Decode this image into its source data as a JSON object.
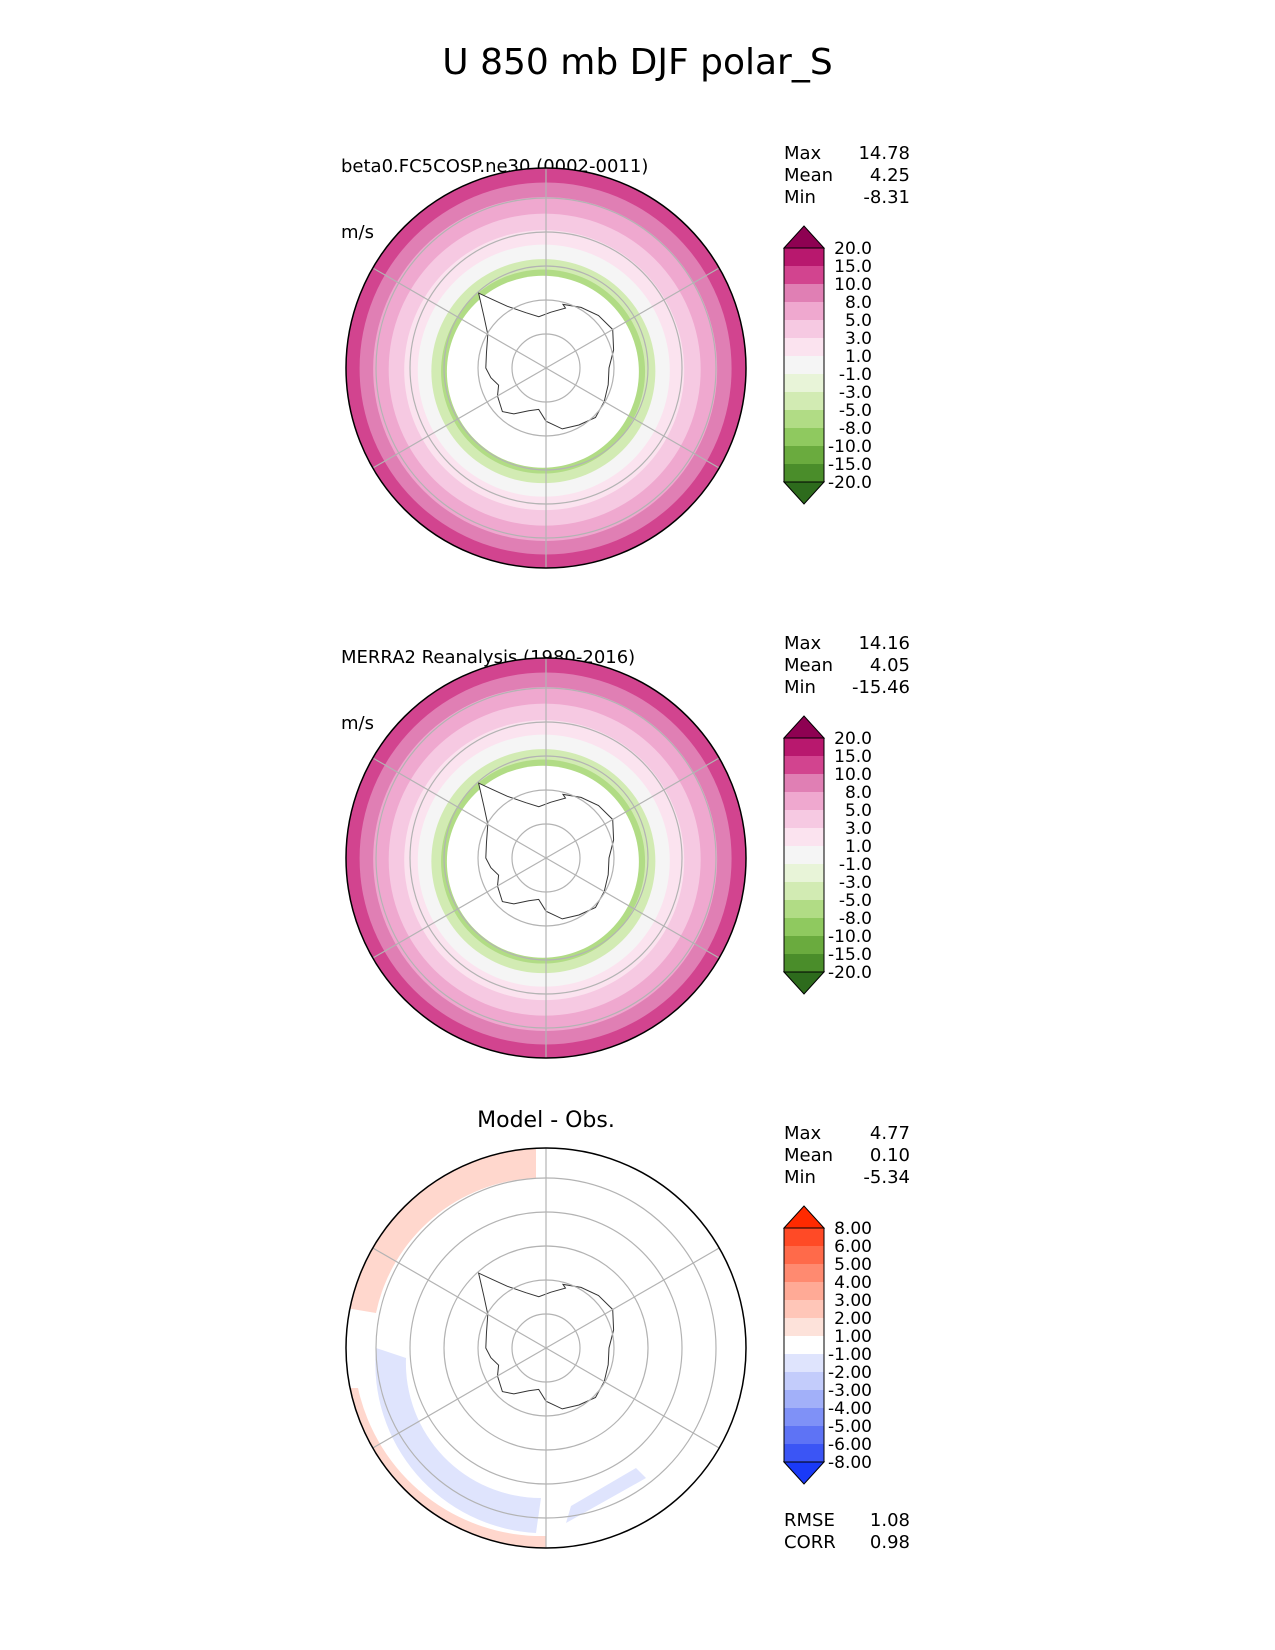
{
  "title": "U 850 mb DJF polar_S",
  "panels": [
    {
      "id": "model",
      "subtitle_line1": "beta0.FC5COSP.ne30 (0002-0011)",
      "subtitle_line2": "m/s",
      "stats": [
        {
          "label": "Max",
          "value": "14.78"
        },
        {
          "label": "Mean",
          "value": "4.25"
        },
        {
          "label": "Min",
          "value": "-8.31"
        }
      ]
    },
    {
      "id": "obs",
      "subtitle_line1": "MERRA2 Reanalysis (1980-2016)",
      "subtitle_line2": "m/s",
      "stats": [
        {
          "label": "Max",
          "value": "14.16"
        },
        {
          "label": "Mean",
          "value": "4.05"
        },
        {
          "label": "Min",
          "value": "-15.46"
        }
      ]
    },
    {
      "id": "diff",
      "title": "Model - Obs.",
      "stats": [
        {
          "label": "Max",
          "value": "4.77"
        },
        {
          "label": "Mean",
          "value": "0.10"
        },
        {
          "label": "Min",
          "value": "-5.34"
        }
      ],
      "extra_stats": [
        {
          "label": "RMSE",
          "value": "1.08"
        },
        {
          "label": "CORR",
          "value": "0.98"
        }
      ]
    }
  ],
  "chart_data": [
    {
      "type": "heatmap",
      "projection": "south-polar-stereographic",
      "units": "m/s",
      "colorbar_levels": [
        "20.0",
        "15.0",
        "10.0",
        "8.0",
        "5.0",
        "3.0",
        "1.0",
        "-1.0",
        "-3.0",
        "-5.0",
        "-8.0",
        "-10.0",
        "-15.0",
        "-20.0"
      ],
      "colorbar_colors": [
        "#8e0152",
        "#b8186e",
        "#d2448f",
        "#e07fb4",
        "#efa8cf",
        "#f6c9e2",
        "#fbe3ef",
        "#f5f5f5",
        "#e8f4d8",
        "#d2ebb3",
        "#b1dc85",
        "#8fc95f",
        "#6aab3e",
        "#4a8d2a",
        "#2d6b1c"
      ],
      "max": 14.78,
      "mean": 4.25,
      "min": -8.31
    },
    {
      "type": "heatmap",
      "projection": "south-polar-stereographic",
      "units": "m/s",
      "colorbar_levels": [
        "20.0",
        "15.0",
        "10.0",
        "8.0",
        "5.0",
        "3.0",
        "1.0",
        "-1.0",
        "-3.0",
        "-5.0",
        "-8.0",
        "-10.0",
        "-15.0",
        "-20.0"
      ],
      "colorbar_colors": [
        "#8e0152",
        "#b8186e",
        "#d2448f",
        "#e07fb4",
        "#efa8cf",
        "#f6c9e2",
        "#fbe3ef",
        "#f5f5f5",
        "#e8f4d8",
        "#d2ebb3",
        "#b1dc85",
        "#8fc95f",
        "#6aab3e",
        "#4a8d2a",
        "#2d6b1c"
      ],
      "max": 14.16,
      "mean": 4.05,
      "min": -15.46
    },
    {
      "type": "heatmap",
      "projection": "south-polar-stereographic",
      "colorbar_levels": [
        "8.00",
        "6.00",
        "5.00",
        "4.00",
        "3.00",
        "2.00",
        "1.00",
        "-1.00",
        "-2.00",
        "-3.00",
        "-4.00",
        "-5.00",
        "-6.00",
        "-8.00"
      ],
      "colorbar_colors": [
        "#ff2a00",
        "#ff4a26",
        "#ff6a4a",
        "#ff8a70",
        "#ffaa96",
        "#ffc6b8",
        "#fde2da",
        "#ffffff",
        "#dfe4fd",
        "#c3ccfb",
        "#a2b0f9",
        "#7f91f7",
        "#5e73f5",
        "#3b55f5",
        "#1a3af7"
      ],
      "max": 4.77,
      "mean": 0.1,
      "min": -5.34,
      "rmse": 1.08,
      "corr": 0.98
    }
  ],
  "colors": {
    "gridline": "#b3b3b3",
    "coastline": "#333333",
    "pos_wind": "#d2448f",
    "neg_wind": "#6aab3e"
  }
}
